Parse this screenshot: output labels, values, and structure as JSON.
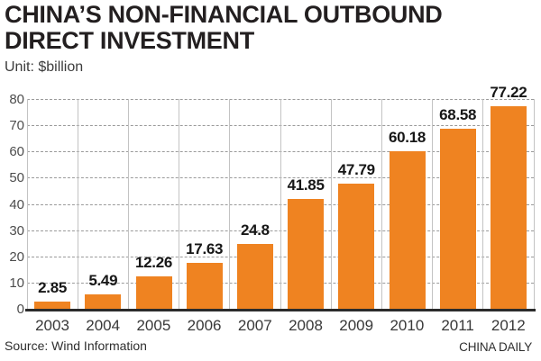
{
  "header": {
    "title_line1": "CHINA’S NON-FINANCIAL OUTBOUND",
    "title_line2": "DIRECT INVESTMENT",
    "unit_label": "Unit: $billion"
  },
  "chart_data": {
    "type": "bar",
    "title": "CHINA’S NON-FINANCIAL OUTBOUND DIRECT INVESTMENT",
    "subtitle": "Unit: $billion",
    "categories": [
      "2003",
      "2004",
      "2005",
      "2006",
      "2007",
      "2008",
      "2009",
      "2010",
      "2011",
      "2012"
    ],
    "values": [
      2.85,
      5.49,
      12.26,
      17.63,
      24.8,
      41.85,
      47.79,
      60.18,
      68.58,
      77.22
    ],
    "value_labels": [
      "2.85",
      "5.49",
      "12.26",
      "17.63",
      "24.8",
      "41.85",
      "47.79",
      "60.18",
      "68.58",
      "77.22"
    ],
    "xlabel": "",
    "ylabel": "Unit: $billion",
    "ylim": [
      0,
      80
    ],
    "yticks": [
      0,
      10,
      20,
      30,
      40,
      50,
      60,
      70,
      80
    ],
    "grid": true,
    "legend_position": "none",
    "bar_color": "#EF8321"
  },
  "colors": {
    "bar": "#EF8321",
    "title_text": "#231F20",
    "grid_dashed": "#9A9A9A",
    "grid_vertical": "#C3C3C3",
    "axis_line": "#2B2B2B"
  },
  "footer": {
    "source": "Source: Wind Information",
    "credit": "CHINA DAILY"
  }
}
